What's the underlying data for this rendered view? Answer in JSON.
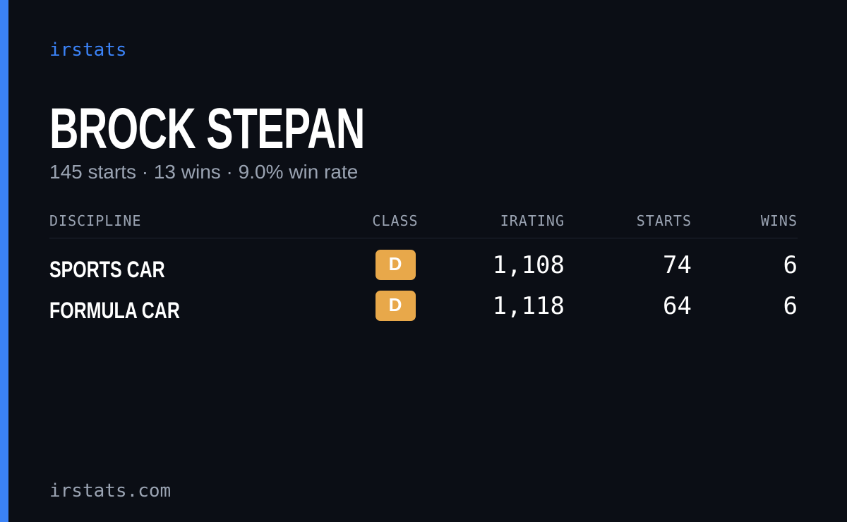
{
  "brand": "irstats",
  "driver": {
    "name": "BROCK STEPAN",
    "summary": "145 starts · 13 wins · 9.0% win rate"
  },
  "table": {
    "headers": [
      "DISCIPLINE",
      "CLASS",
      "IRATING",
      "STARTS",
      "WINS"
    ],
    "rows": [
      [
        "SPORTS CAR",
        "D",
        "1,108",
        "74",
        "6"
      ],
      [
        "FORMULA CAR",
        "D",
        "1,118",
        "64",
        "6"
      ]
    ]
  },
  "footer": "irstats.com"
}
